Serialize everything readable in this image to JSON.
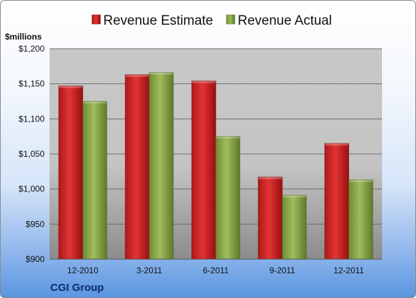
{
  "chart_data": {
    "type": "bar",
    "title": "",
    "ylabel": "$millions",
    "xlabel": "",
    "categories": [
      "12-2010",
      "3-2011",
      "6-2011",
      "9-2011",
      "12-2011"
    ],
    "series": [
      {
        "name": "Revenue Estimate",
        "values": [
          1147,
          1163,
          1154,
          1017,
          1065
        ],
        "color": "#d42020"
      },
      {
        "name": "Revenue Actual",
        "values": [
          1125,
          1166,
          1075,
          991,
          1013
        ],
        "color": "#8faa4a"
      }
    ],
    "ylim": [
      900,
      1200
    ],
    "yticks": [
      "$900",
      "$950",
      "$1,000",
      "$1,050",
      "$1,100",
      "$1,150",
      "$1,200"
    ],
    "grid": true,
    "legend": "top"
  },
  "company": "CGI Group"
}
